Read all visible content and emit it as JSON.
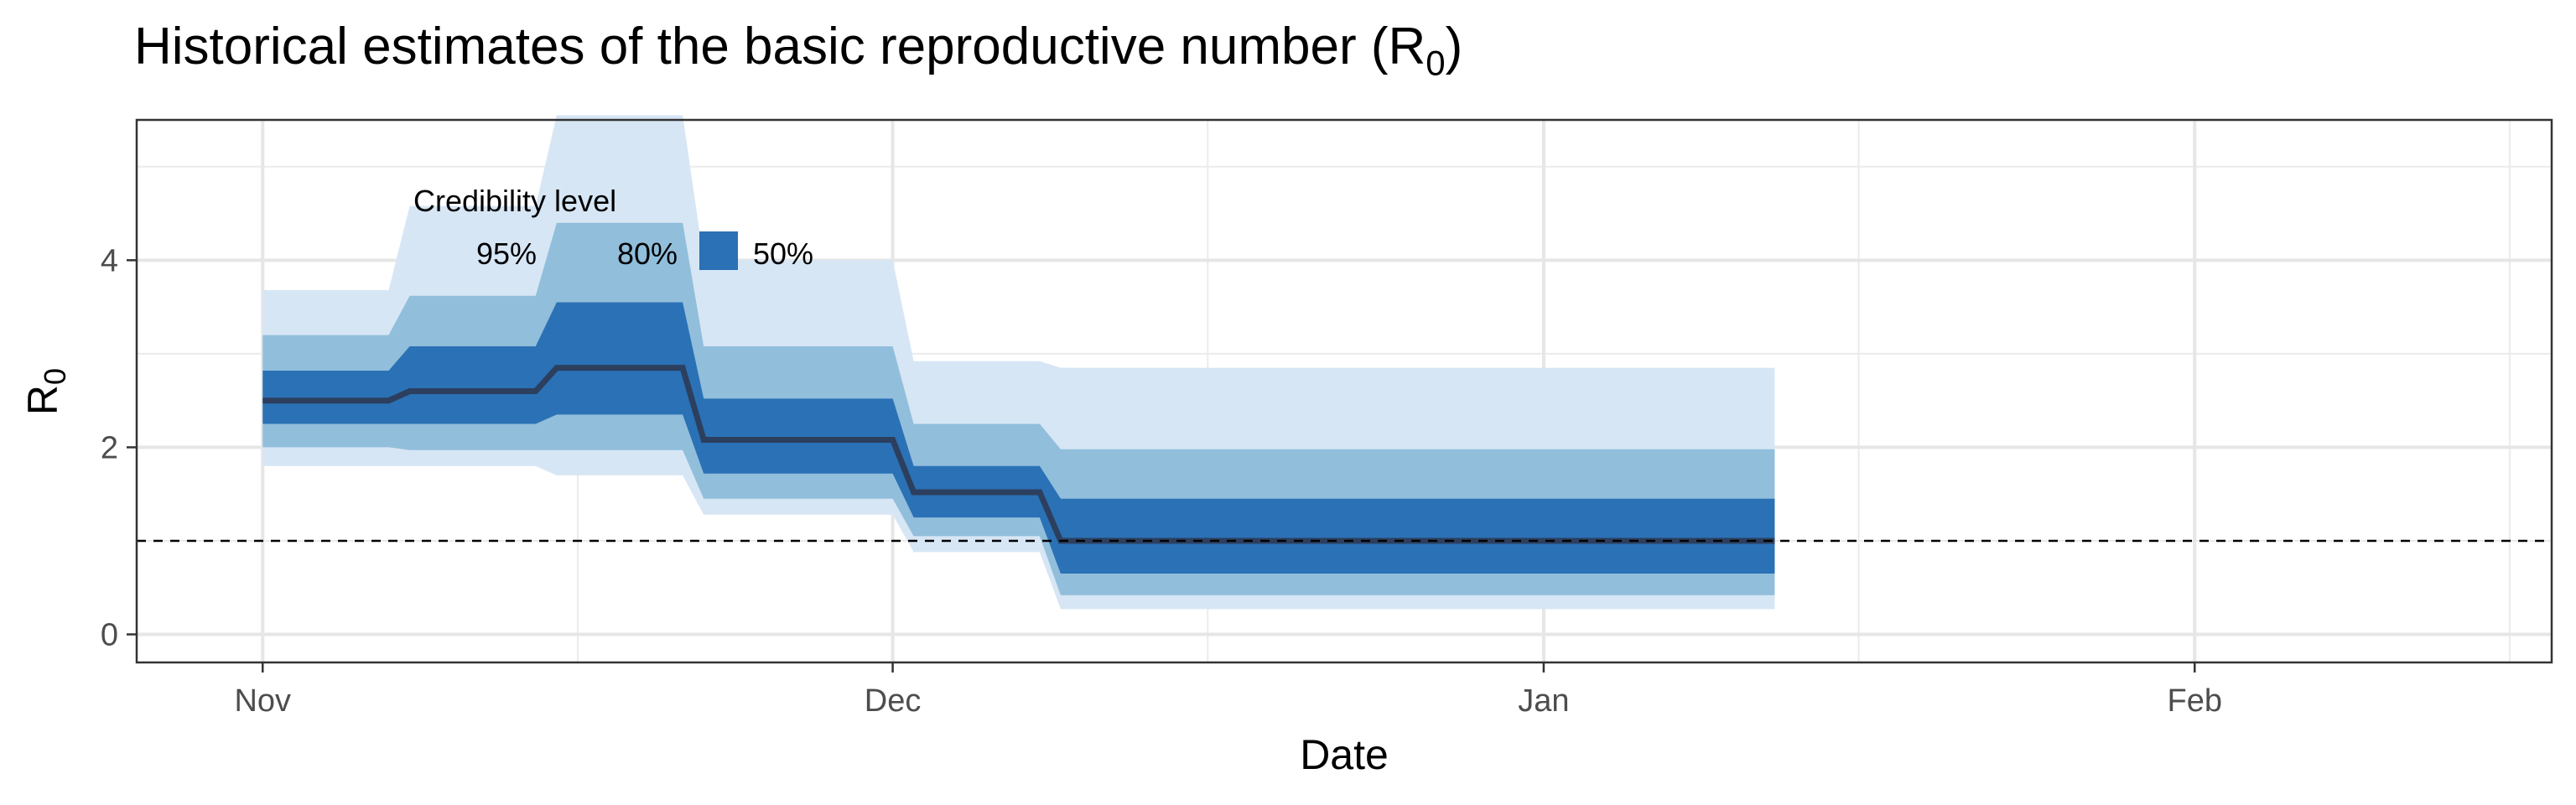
{
  "chart_data": {
    "type": "area",
    "title_main": "Historical estimates of the basic reproductive number (R",
    "title_sub": "0",
    "title_end": ")",
    "xlabel": "Date",
    "ylabel_main": "R",
    "ylabel_sub": "0",
    "x_ticks": [
      {
        "label": "Nov",
        "date": "2020-11-01"
      },
      {
        "label": "Dec",
        "date": "2020-12-01"
      },
      {
        "label": "Jan",
        "date": "2021-01-01"
      },
      {
        "label": "Feb",
        "date": "2021-02-01"
      }
    ],
    "x_minor_dates": [
      "2020-11-16",
      "2020-12-16",
      "2021-01-16",
      "2021-02-16"
    ],
    "xlim": [
      "2020-10-26",
      "2021-02-18"
    ],
    "y_ticks": [
      0,
      2,
      4
    ],
    "y_minor": [
      1,
      3,
      5
    ],
    "ylim": [
      -0.3,
      5.5
    ],
    "reference_line": 1,
    "legend": {
      "title": "Credibility level",
      "placement": "top-left",
      "items": [
        {
          "label": "95%",
          "color": "#d6e6f5"
        },
        {
          "label": "80%",
          "color": "#91bedb"
        },
        {
          "label": "50%",
          "color": "#2b71b5"
        }
      ]
    },
    "colors": {
      "median": "#2c3f5e",
      "ci95": "#d6e6f5",
      "ci80": "#91bedb",
      "ci50": "#2b71b5",
      "reference": "#000000"
    },
    "points": [
      {
        "date": "2020-11-01",
        "median": 2.5,
        "lo50": 2.25,
        "hi50": 2.82,
        "lo80": 2.0,
        "hi80": 3.2,
        "lo95": 1.8,
        "hi95": 3.68
      },
      {
        "date": "2020-11-07",
        "median": 2.5,
        "lo50": 2.25,
        "hi50": 2.82,
        "lo80": 2.0,
        "hi80": 3.2,
        "lo95": 1.8,
        "hi95": 3.68
      },
      {
        "date": "2020-11-08",
        "median": 2.6,
        "lo50": 2.25,
        "hi50": 3.08,
        "lo80": 1.97,
        "hi80": 3.62,
        "lo95": 1.8,
        "hi95": 4.58
      },
      {
        "date": "2020-11-14",
        "median": 2.6,
        "lo50": 2.25,
        "hi50": 3.08,
        "lo80": 1.97,
        "hi80": 3.62,
        "lo95": 1.8,
        "hi95": 4.58
      },
      {
        "date": "2020-11-15",
        "median": 2.85,
        "lo50": 2.35,
        "hi50": 3.55,
        "lo80": 1.97,
        "hi80": 4.4,
        "lo95": 1.7,
        "hi95": 5.55
      },
      {
        "date": "2020-11-21",
        "median": 2.85,
        "lo50": 2.35,
        "hi50": 3.55,
        "lo80": 1.97,
        "hi80": 4.4,
        "lo95": 1.7,
        "hi95": 5.55
      },
      {
        "date": "2020-11-22",
        "median": 2.08,
        "lo50": 1.72,
        "hi50": 2.52,
        "lo80": 1.45,
        "hi80": 3.08,
        "lo95": 1.28,
        "hi95": 4.0
      },
      {
        "date": "2020-12-01",
        "median": 2.08,
        "lo50": 1.72,
        "hi50": 2.52,
        "lo80": 1.45,
        "hi80": 3.08,
        "lo95": 1.28,
        "hi95": 4.0
      },
      {
        "date": "2020-12-02",
        "median": 1.52,
        "lo50": 1.25,
        "hi50": 1.8,
        "lo80": 1.05,
        "hi80": 2.25,
        "lo95": 0.88,
        "hi95": 2.92
      },
      {
        "date": "2020-12-08",
        "median": 1.52,
        "lo50": 1.25,
        "hi50": 1.8,
        "lo80": 1.05,
        "hi80": 2.25,
        "lo95": 0.88,
        "hi95": 2.92
      },
      {
        "date": "2020-12-09",
        "median": 1.0,
        "lo50": 0.65,
        "hi50": 1.45,
        "lo80": 0.42,
        "hi80": 1.98,
        "lo95": 0.27,
        "hi95": 2.85
      },
      {
        "date": "2021-01-12",
        "median": 1.0,
        "lo50": 0.65,
        "hi50": 1.45,
        "lo80": 0.42,
        "hi80": 1.98,
        "lo95": 0.27,
        "hi95": 2.85
      }
    ]
  }
}
